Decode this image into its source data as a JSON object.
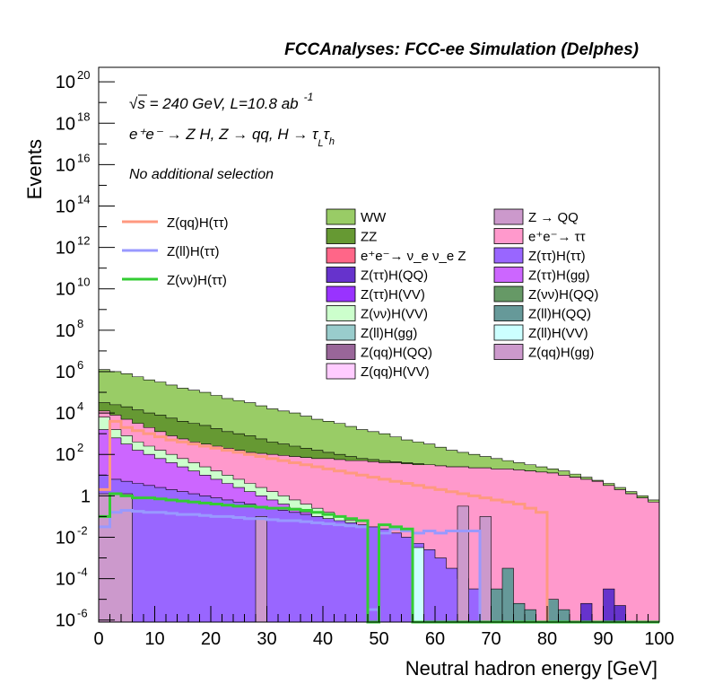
{
  "header": {
    "experiment_label": "FCCAnalyses: FCC-ee Simulation (Delphes)"
  },
  "annotations": {
    "sqrt": "√",
    "energy_line_rest": "s = 240 GeV, L=10.8 ab",
    "lumi_exponent": "-1",
    "process_line": "e⁺e⁻ → Z H, Z → qq, H → τ",
    "process_sub_L": "L",
    "process_tau2": "τ",
    "process_sub_h": "h",
    "selection": "No additional selection"
  },
  "chart_data": {
    "type": "bar",
    "title": "",
    "xlabel": "Neutral hadron energy [GeV]",
    "ylabel": "Events",
    "xlim": [
      0,
      100
    ],
    "ylim_log10": [
      -6.1,
      20.7
    ],
    "log_y": true,
    "x_ticks": [
      "0",
      "10",
      "20",
      "30",
      "40",
      "50",
      "60",
      "70",
      "80",
      "90",
      "100"
    ],
    "y_tick_exponents": [
      "-6",
      "-4",
      "-2",
      "",
      "",
      "2",
      "4",
      "6",
      "8",
      "10",
      "12",
      "14",
      "16",
      "18",
      "20"
    ],
    "y_tick_plain": {
      "0": "1"
    },
    "y_tick_values": [
      -6,
      -4,
      -2,
      0,
      2,
      4,
      6,
      8,
      10,
      12,
      14,
      16,
      18,
      20
    ],
    "legend_signal": [
      {
        "name": "Z(qq)H(ττ)",
        "color": "#ff9980"
      },
      {
        "name": "Z(ll)H(ττ)",
        "color": "#9999ff"
      },
      {
        "name": "Z(νν)H(ττ)",
        "color": "#33cc33"
      }
    ],
    "legend_background": [
      {
        "name": "WW",
        "color": "#99cc66"
      },
      {
        "name": "ZZ",
        "color": "#669933"
      },
      {
        "name": "e⁺e⁻→ ν_e ν_e Z",
        "color": "#ff6688"
      },
      {
        "name": "Z(ττ)H(QQ)",
        "color": "#6633cc"
      },
      {
        "name": "Z(ττ)H(VV)",
        "color": "#9933ff"
      },
      {
        "name": "Z(νν)H(VV)",
        "color": "#ccffcc"
      },
      {
        "name": "Z(ll)H(gg)",
        "color": "#99cccc"
      },
      {
        "name": "Z(qq)H(QQ)",
        "color": "#996699"
      },
      {
        "name": "Z(qq)H(VV)",
        "color": "#ffccff"
      },
      {
        "name": "Z → QQ",
        "color": "#cc99cc"
      },
      {
        "name": "e⁺e⁻→ ττ",
        "color": "#ff99cc"
      },
      {
        "name": "Z(ττ)H(ττ)",
        "color": "#9966ff"
      },
      {
        "name": "Z(ττ)H(gg)",
        "color": "#cc66ff"
      },
      {
        "name": "Z(νν)H(QQ)",
        "color": "#669966"
      },
      {
        "name": "Z(ll)H(QQ)",
        "color": "#669999"
      },
      {
        "name": "Z(ll)H(VV)",
        "color": "#ccffff"
      },
      {
        "name": "Z(qq)H(gg)",
        "color": "#cc99cc"
      }
    ],
    "stack_totals_log10": {
      "x_bin_width": 2,
      "WW_top": [
        6.1,
        6.0,
        5.9,
        5.75,
        5.6,
        5.5,
        5.35,
        5.2,
        5.1,
        5.0,
        4.85,
        4.7,
        4.6,
        4.5,
        4.35,
        4.2,
        4.1,
        4.0,
        3.85,
        3.7,
        3.6,
        3.5,
        3.35,
        3.2,
        3.1,
        3.0,
        2.85,
        2.7,
        2.6,
        2.5,
        2.35,
        2.2,
        2.1,
        2.0,
        1.9,
        1.8,
        1.7,
        1.6,
        1.5,
        1.4,
        1.3,
        1.2,
        1.05,
        0.9,
        0.75,
        0.6,
        0.4,
        0.2,
        0.0,
        -0.2
      ],
      "ZZ_top": [
        4.5,
        4.4,
        4.3,
        4.15,
        4.0,
        3.9,
        3.75,
        3.6,
        3.5,
        3.4,
        3.25,
        3.1,
        3.0,
        2.9,
        2.75,
        2.6,
        2.5,
        2.4,
        2.3,
        2.2,
        2.1,
        2.0,
        1.9,
        1.8,
        1.75,
        1.7,
        1.65,
        1.6,
        1.55,
        1.5,
        1.45,
        1.4,
        1.4,
        1.35,
        1.35,
        1.3,
        1.3,
        1.25,
        1.2,
        1.15,
        1.1,
        1.0,
        0.9,
        0.8,
        0.7,
        0.5,
        0.3,
        0.1,
        -0.1,
        -0.3
      ],
      "ee_tautau_top": [
        4.1,
        3.9,
        3.7,
        3.5,
        3.3,
        3.1,
        2.9,
        2.75,
        2.6,
        2.5,
        2.4,
        2.3,
        2.2,
        2.1,
        2.05,
        2.0,
        1.95,
        1.9,
        1.85,
        1.8,
        1.8,
        1.75,
        1.7,
        1.7,
        1.65,
        1.6,
        1.6,
        1.55,
        1.5,
        1.5,
        1.45,
        1.4,
        1.4,
        1.35,
        1.35,
        1.3,
        1.3,
        1.25,
        1.2,
        1.15,
        1.1,
        1.0,
        0.9,
        0.8,
        0.7,
        0.5,
        0.3,
        0.1,
        -0.1,
        -0.3
      ],
      "ZZtautau_top": [
        3.8,
        3.2,
        2.9,
        2.6,
        2.4,
        2.2,
        2.0,
        1.8,
        1.6,
        1.4,
        1.2,
        1.0,
        0.8,
        0.6,
        0.4,
        0.2,
        0.0,
        -0.2,
        -0.4,
        -0.6,
        -0.8,
        -1.0,
        -1.2,
        -1.4,
        -1.6,
        -1.8,
        -2.0,
        -2.3,
        -2.6,
        -3.0,
        -3.6,
        -4.2,
        -5.0,
        -6.1,
        -6.1,
        -6.1,
        -6.1,
        -6.1,
        -6.1,
        -6.1,
        -6.1,
        -6.1,
        -6.1,
        -6.1,
        -6.1,
        -6.1,
        -6.1,
        -6.1,
        -6.1,
        -6.1
      ],
      "Zll_top": [
        3.2,
        2.8,
        2.5,
        2.2,
        2.0,
        1.8,
        1.6,
        1.4,
        1.2,
        1.0,
        0.8,
        0.6,
        0.4,
        0.2,
        0.0,
        -0.2,
        -0.4,
        -0.6,
        -0.8,
        -1.0,
        -1.2,
        -1.4,
        -1.6,
        -1.8,
        -2.0,
        -2.2,
        -2.5,
        -2.8,
        -3.2,
        -3.8,
        -4.5,
        -5.2,
        -6.1,
        -6.1,
        -6.1,
        -6.1,
        -6.1,
        -6.1,
        -6.1,
        -6.1,
        -6.1,
        -6.1,
        -6.1,
        -6.1,
        -6.1,
        -6.1,
        -6.1,
        -6.1,
        -6.1,
        -6.1
      ],
      "ZH_top": [
        1.0,
        0.8,
        0.7,
        0.6,
        0.5,
        0.4,
        0.3,
        0.2,
        0.1,
        0.0,
        -0.1,
        -0.2,
        -0.3,
        -0.4,
        -0.5,
        -0.6,
        -0.7,
        -0.8,
        -0.9,
        -1.0,
        -1.1,
        -1.2,
        -1.3,
        -1.4,
        -1.5,
        -1.6,
        -1.8,
        -2.0,
        -2.3,
        -2.6,
        -3.0,
        -3.5,
        -4.0,
        -4.5,
        -5.0,
        -6.1,
        -6.1,
        -6.1,
        -6.1,
        -6.1,
        -6.1,
        -6.1,
        -6.1,
        -6.1,
        -6.1,
        -6.1,
        -6.1,
        -6.1,
        -6.1,
        -6.1
      ]
    },
    "signal_lines_log10": {
      "x_bin_width": 2,
      "Z(qq)H(ττ)": [
        0.3,
        3.6,
        3.3,
        3.15,
        3.0,
        2.85,
        2.7,
        2.6,
        2.5,
        2.4,
        2.3,
        2.2,
        2.1,
        2.0,
        1.9,
        1.8,
        1.7,
        1.6,
        1.5,
        1.4,
        1.3,
        1.2,
        1.1,
        1.0,
        0.9,
        0.8,
        0.7,
        0.6,
        0.5,
        0.4,
        0.3,
        0.2,
        0.1,
        0.0,
        -0.1,
        -0.2,
        -0.3,
        -0.4,
        -0.6,
        -0.8,
        -6.1,
        -6.1,
        -6.1,
        -6.1,
        -6.1,
        -6.1,
        -6.1,
        -6.1,
        -6.1,
        -6.1
      ],
      "Z(ll)H(ττ)": [
        -1.5,
        -0.8,
        -0.7,
        -0.75,
        -0.8,
        -0.8,
        -0.85,
        -0.9,
        -0.9,
        -0.95,
        -1.0,
        -1.0,
        -1.05,
        -1.1,
        -1.1,
        -1.15,
        -1.2,
        -1.2,
        -1.25,
        -1.3,
        -1.35,
        -1.4,
        -1.45,
        -1.5,
        -5.5,
        -1.8,
        -1.6,
        -1.7,
        -1.8,
        -1.7,
        -1.8,
        -1.7,
        -1.7,
        -1.7,
        -6.1,
        -6.1,
        -6.1,
        -6.1,
        -6.1,
        -6.1,
        -6.1,
        -6.1,
        -6.1,
        -6.1,
        -6.1,
        -6.1,
        -6.1,
        -6.1,
        -6.1,
        -6.1
      ],
      "Z(νν)H(ττ)": [
        -1.0,
        0.1,
        0.0,
        -0.1,
        -0.1,
        -0.15,
        -0.2,
        -0.25,
        -0.3,
        -0.35,
        -0.4,
        -0.45,
        -0.5,
        -0.5,
        -0.55,
        -0.6,
        -0.6,
        -0.65,
        -0.7,
        -0.8,
        -0.9,
        -1.0,
        -1.1,
        -1.2,
        -6.1,
        -1.4,
        -1.5,
        -1.6,
        -6.1,
        -6.1,
        -6.1,
        -6.1,
        -6.1,
        -6.1,
        -6.1,
        -6.1,
        -6.1,
        -6.1,
        -6.1,
        -6.1,
        -6.1,
        -6.1,
        -6.1,
        -6.1,
        -6.1,
        -6.1,
        -6.1,
        -6.1,
        -6.1,
        -6.1
      ]
    }
  }
}
